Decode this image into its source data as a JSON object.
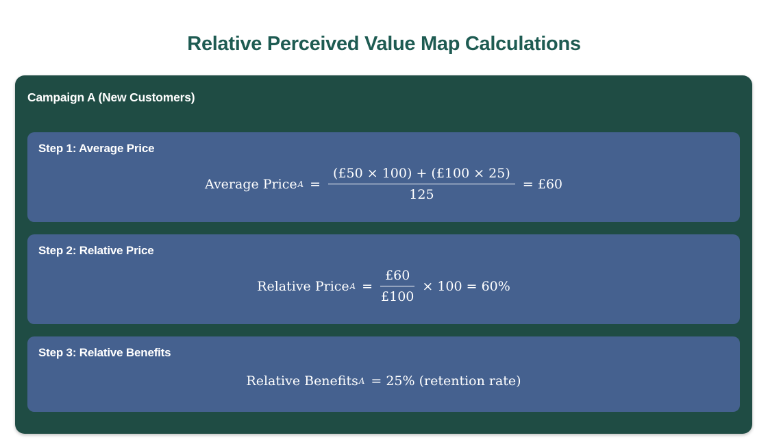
{
  "page": {
    "title": "Relative Perceived Value Map Calculations"
  },
  "panel": {
    "title": "Campaign A (New Customers)",
    "steps": [
      {
        "label": "Step 1: Average Price",
        "formula": {
          "lhs": "Average Price",
          "sub": "A",
          "eq": "=",
          "frac": {
            "num": "(£50 × 100) + (£100 × 25)",
            "den": "125"
          },
          "rhs": "= £60"
        }
      },
      {
        "label": "Step 2: Relative Price",
        "formula": {
          "lhs": "Relative Price",
          "sub": "A",
          "eq": "=",
          "frac": {
            "num": "£60",
            "den": "£100"
          },
          "rhs": "× 100 = 60%"
        }
      },
      {
        "label": "Step 3: Relative Benefits",
        "formula": {
          "lhs": "Relative Benefits",
          "sub": "A",
          "rhs": "= 25% (retention rate)"
        }
      }
    ]
  },
  "colors": {
    "title_text": "#1E5B52",
    "panel_bg": "#1F4C44",
    "card_bg": "#45618F",
    "text": "#FFFFFF"
  }
}
